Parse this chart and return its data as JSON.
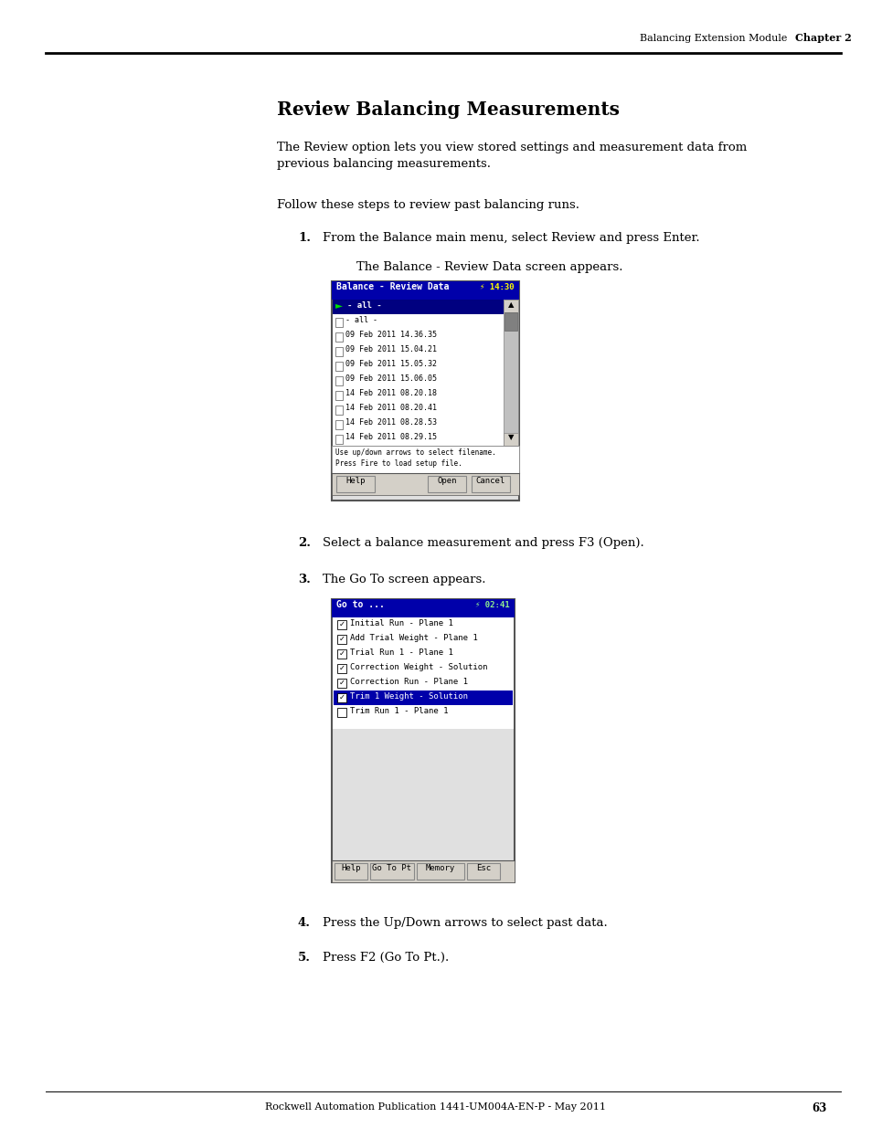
{
  "page_bg": "#ffffff",
  "header_right_text": "Balancing Extension Module",
  "header_right_bold": "Chapter 2",
  "section_title": "Review Balancing Measurements",
  "body_text1": "The Review option lets you view stored settings and measurement data from\nprevious balancing measurements.",
  "follow_text": "Follow these steps to review past balancing runs.",
  "step1_num": "1.",
  "step1_text": "From the Balance main menu, select Review and press Enter.",
  "step1_sub": "The Balance - Review Data screen appears.",
  "screen1_items_all": [
    "- all -",
    "09 Feb 2011 14.36.35",
    "09 Feb 2011 15.04.21",
    "09 Feb 2011 15.05.32",
    "09 Feb 2011 15.06.05",
    "14 Feb 2011 08.20.18",
    "14 Feb 2011 08.20.41",
    "14 Feb 2011 08.28.53",
    "14 Feb 2011 08.29.15"
  ],
  "screen1_hint": "Use up/down arrows to select filename.\nPress Fire to load setup file.",
  "screen1_buttons": [
    "Help",
    "Open",
    "Cancel"
  ],
  "step2_num": "2.",
  "step2_text": "Select a balance measurement and press F3 (Open).",
  "step3_num": "3.",
  "step3_text": "The Go To screen appears.",
  "screen2_items_checked": [
    "Initial Run - Plane 1",
    "Add Trial Weight - Plane 1",
    "Trial Run 1 - Plane 1",
    "Correction Weight - Solution",
    "Correction Run - Plane 1",
    "Trim 1 Weight - Solution"
  ],
  "screen2_item_selected": "Trim 1 Weight - Solution",
  "screen2_items_unchecked": [
    "Trim Run 1 - Plane 1"
  ],
  "screen2_buttons": [
    "Help",
    "Go To Pt",
    "Memory",
    "Esc"
  ],
  "step4_num": "4.",
  "step4_text": "Press the Up/Down arrows to select past data.",
  "step5_num": "5.",
  "step5_text": "Press F2 (Go To Pt.).",
  "footer_text": "Rockwell Automation Publication 1441-UM004A-EN-P - May 2011",
  "footer_page": "63"
}
